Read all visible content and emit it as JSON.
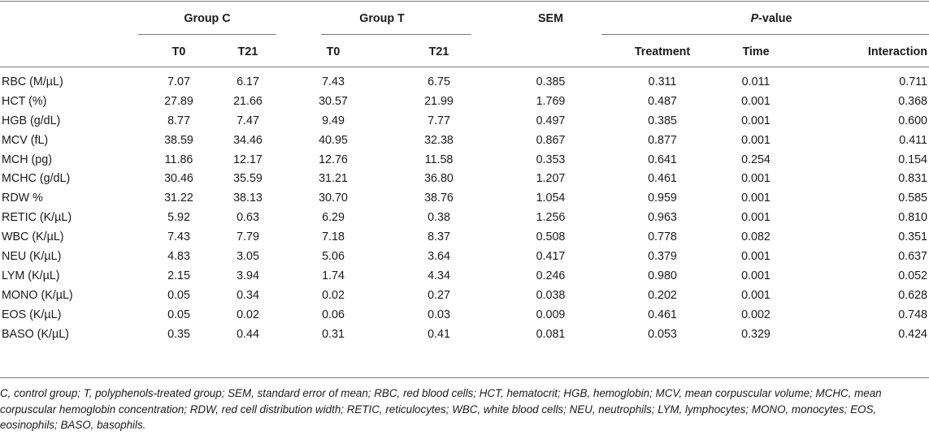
{
  "table": {
    "group_c": "Group C",
    "group_t": "Group T",
    "sem": "SEM",
    "p_value_prefix": "P",
    "p_value_suffix": "-value",
    "subheaders": {
      "c_t0": "T0",
      "c_t21": "T21",
      "t_t0": "T0",
      "t_t21": "T21",
      "treatment": "Treatment",
      "time": "Time",
      "interaction": "Interaction"
    },
    "rows": [
      {
        "label": "RBC (M/µL)",
        "c_t0": "7.07",
        "c_t21": "6.17",
        "t_t0": "7.43",
        "t_t21": "6.75",
        "sem": "0.385",
        "treatment": "0.311",
        "time": "0.011",
        "interaction": "0.711"
      },
      {
        "label": "HCT (%)",
        "c_t0": "27.89",
        "c_t21": "21.66",
        "t_t0": "30.57",
        "t_t21": "21.99",
        "sem": "1.769",
        "treatment": "0.487",
        "time": "0.001",
        "interaction": "0.368"
      },
      {
        "label": "HGB (g/dL)",
        "c_t0": "8.77",
        "c_t21": "7.47",
        "t_t0": "9.49",
        "t_t21": "7.77",
        "sem": "0.497",
        "treatment": "0.385",
        "time": "0.001",
        "interaction": "0.600"
      },
      {
        "label": "MCV (fL)",
        "c_t0": "38.59",
        "c_t21": "34.46",
        "t_t0": "40.95",
        "t_t21": "32.38",
        "sem": "0.867",
        "treatment": "0.877",
        "time": "0.001",
        "interaction": "0.411"
      },
      {
        "label": "MCH (pg)",
        "c_t0": "11.86",
        "c_t21": "12.17",
        "t_t0": "12.76",
        "t_t21": "11.58",
        "sem": "0.353",
        "treatment": "0.641",
        "time": "0.254",
        "interaction": "0.154"
      },
      {
        "label": "MCHC (g/dL)",
        "c_t0": "30.46",
        "c_t21": "35.59",
        "t_t0": "31.21",
        "t_t21": "36.80",
        "sem": "1.207",
        "treatment": "0.461",
        "time": "0.001",
        "interaction": "0.831"
      },
      {
        "label": "RDW %",
        "c_t0": "31.22",
        "c_t21": "38.13",
        "t_t0": "30.70",
        "t_t21": "38.76",
        "sem": "1.054",
        "treatment": "0.959",
        "time": "0.001",
        "interaction": "0.585"
      },
      {
        "label": "RETIC (K/µL)",
        "c_t0": "5.92",
        "c_t21": "0.63",
        "t_t0": "6.29",
        "t_t21": "0.38",
        "sem": "1.256",
        "treatment": "0.963",
        "time": "0.001",
        "interaction": "0.810"
      },
      {
        "label": "WBC (K/µL)",
        "c_t0": "7.43",
        "c_t21": "7.79",
        "t_t0": "7.18",
        "t_t21": "8.37",
        "sem": "0.508",
        "treatment": "0.778",
        "time": "0.082",
        "interaction": "0.351"
      },
      {
        "label": "NEU (K/µL)",
        "c_t0": "4.83",
        "c_t21": "3.05",
        "t_t0": "5.06",
        "t_t21": "3.64",
        "sem": "0.417",
        "treatment": "0.379",
        "time": "0.001",
        "interaction": "0.637"
      },
      {
        "label": "LYM (K/µL)",
        "c_t0": "2.15",
        "c_t21": "3.94",
        "t_t0": "1.74",
        "t_t21": "4.34",
        "sem": "0.246",
        "treatment": "0.980",
        "time": "0.001",
        "interaction": "0.052"
      },
      {
        "label": "MONO (K/µL)",
        "c_t0": "0.05",
        "c_t21": "0.34",
        "t_t0": "0.02",
        "t_t21": "0.27",
        "sem": "0.038",
        "treatment": "0.202",
        "time": "0.001",
        "interaction": "0.628"
      },
      {
        "label": "EOS (K/µL)",
        "c_t0": "0.05",
        "c_t21": "0.02",
        "t_t0": "0.06",
        "t_t21": "0.03",
        "sem": "0.009",
        "treatment": "0.461",
        "time": "0.002",
        "interaction": "0.748"
      },
      {
        "label": "BASO (K/µL)",
        "c_t0": "0.35",
        "c_t21": "0.44",
        "t_t0": "0.31",
        "t_t21": "0.41",
        "sem": "0.081",
        "treatment": "0.053",
        "time": "0.329",
        "interaction": "0.424"
      }
    ]
  },
  "footnote": "C, control group; T, polyphenols-treated group; SEM, standard error of mean; RBC, red blood cells; HCT, hematocrit; HGB, hemoglobin; MCV, mean corpuscular volume; MCHC, mean corpuscular hemoglobin concentration; RDW, red cell distribution width; RETIC, reticulocytes; WBC, white blood cells; NEU, neutrophils; LYM, lymphocytes; MONO, monocytes; EOS, eosinophils; BASO, basophils."
}
